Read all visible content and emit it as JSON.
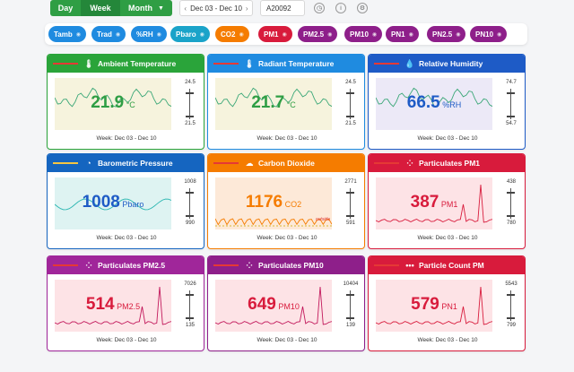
{
  "toolbar": {
    "day_label": "Day",
    "week_label": "Week",
    "month_label": "Month",
    "date_range": "Dec 03 - Dec 10",
    "sensor_id": "A20092"
  },
  "pills": [
    {
      "label": "Tamb",
      "color": "#1f8be0"
    },
    {
      "label": "Trad",
      "color": "#1f8be0"
    },
    {
      "label": "%RH",
      "color": "#1f8be0"
    },
    {
      "label": "Pbaro",
      "color": "#1aa3c9"
    },
    {
      "label": "CO2",
      "color": "#f57c00"
    },
    {
      "label": "PM1",
      "color": "#d81b3c"
    },
    {
      "label": "PM2.5",
      "color": "#8e1f8a"
    },
    {
      "label": "PM10",
      "color": "#8e1f8a"
    },
    {
      "label": "PN1",
      "color": "#8e1f8a"
    },
    {
      "label": "PN2.5",
      "color": "#8e1f8a"
    },
    {
      "label": "PN10",
      "color": "#8e1f8a"
    }
  ],
  "cards": [
    {
      "title": "Ambient Temperature",
      "value": "21.9",
      "unit": "°C",
      "max": "24.5",
      "min": "21.5",
      "caption": "Week: Dec 03 - Dec 10",
      "color": "#2aa43a",
      "value_color": "#2f9e44"
    },
    {
      "title": "Radiant Temperature",
      "value": "21.7",
      "unit": "°C",
      "max": "24.5",
      "min": "21.5",
      "caption": "Week: Dec 03 - Dec 10",
      "color": "#1f8be0",
      "value_color": "#2f9e44"
    },
    {
      "title": "Relative Humidity",
      "value": "66.5",
      "unit": "%RH",
      "max": "74.7",
      "min": "54.7",
      "caption": "Week: Dec 03 - Dec 10",
      "color": "#1e5bc6",
      "value_color": "#1e5bc6"
    },
    {
      "title": "Barometric Pressure",
      "value": "1008",
      "unit": "Pbaro",
      "max": "1008",
      "min": "990",
      "caption": "Week: Dec 03 - Dec 10",
      "color": "#1565c0",
      "value_color": "#1e5bc6"
    },
    {
      "title": "Carbon Dioxide",
      "value": "1176",
      "unit": "CO2",
      "max": "2771",
      "min": "591",
      "caption": "Week: Dec 03 - Dec 10",
      "color": "#f57c00",
      "value_color": "#f57c00",
      "note": "outside"
    },
    {
      "title": "Particulates PM1",
      "value": "387",
      "unit": "PM1",
      "max": "438",
      "min": "780",
      "caption": "Week: Dec 03 - Dec 10",
      "color": "#d81b3c",
      "value_color": "#d81b3c"
    },
    {
      "title": "Particulates PM2.5",
      "value": "514",
      "unit": "PM2.5",
      "max": "7026",
      "min": "135",
      "caption": "Week: Dec 03 - Dec 10",
      "color": "#a0269a",
      "value_color": "#d81b3c"
    },
    {
      "title": "Particulates PM10",
      "value": "649",
      "unit": "PM10",
      "max": "10404",
      "min": "139",
      "caption": "Week: Dec 03 - Dec 10",
      "color": "#8e1f8a",
      "value_color": "#d81b3c"
    },
    {
      "title": "Particle Count PM",
      "value": "579",
      "unit": "PN1",
      "max": "5543",
      "min": "799",
      "caption": "Week: Dec 03 - Dec 10",
      "color": "#d81b3c",
      "value_color": "#d81b3c"
    }
  ]
}
